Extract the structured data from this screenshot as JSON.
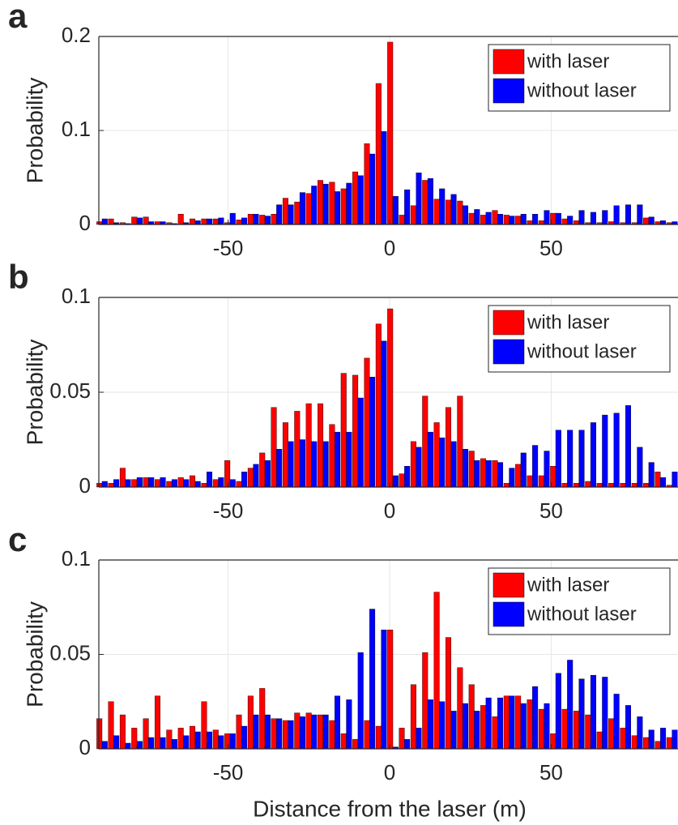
{
  "chart_data": [
    {
      "type": "bar",
      "panel_label": "a",
      "ylabel": "Probability",
      "x": [
        -89,
        -85.4,
        -81.8,
        -78.2,
        -74.6,
        -71,
        -67.4,
        -63.8,
        -60.2,
        -56.6,
        -53,
        -49.4,
        -45.8,
        -42.2,
        -38.6,
        -35,
        -31.4,
        -27.8,
        -24.2,
        -20.6,
        -17,
        -13.4,
        -9.8,
        -6.2,
        -2.6,
        1,
        4.6,
        8.2,
        11.8,
        15.4,
        19,
        22.6,
        26.2,
        29.8,
        33.4,
        37,
        40.6,
        44.2,
        47.8,
        51.4,
        55,
        58.6,
        62.2,
        65.8,
        69.4,
        73,
        76.6,
        80.2,
        83.8,
        87.4
      ],
      "series": [
        {
          "name": "with laser",
          "color": "#ff0000",
          "values": [
            0.003,
            0.006,
            0.002,
            0.008,
            0.008,
            0.003,
            0.002,
            0.011,
            0.006,
            0.006,
            0.006,
            0.002,
            0.005,
            0.011,
            0.01,
            0.011,
            0.028,
            0.024,
            0.033,
            0.047,
            0.045,
            0.038,
            0.056,
            0.086,
            0.15,
            0.194,
            0.01,
            0.02,
            0.047,
            0.027,
            0.026,
            0.025,
            0.012,
            0.01,
            0.015,
            0.01,
            0.009,
            0.004,
            0.004,
            0.012,
            0.006,
            0.004,
            0.002,
            0.002,
            0.003,
            0.002,
            0.002,
            0.007,
            0.003,
            0.002
          ]
        },
        {
          "name": "without laser",
          "color": "#0000ff",
          "values": [
            0.006,
            0.002,
            0.001,
            0.007,
            0.003,
            0.003,
            0.001,
            0.002,
            0.004,
            0.006,
            0.007,
            0.012,
            0.007,
            0.011,
            0.009,
            0.021,
            0.021,
            0.034,
            0.041,
            0.043,
            0.035,
            0.044,
            0.052,
            0.075,
            0.099,
            0.03,
            0.037,
            0.055,
            0.049,
            0.038,
            0.032,
            0.02,
            0.016,
            0.013,
            0.011,
            0.009,
            0.011,
            0.011,
            0.015,
            0.012,
            0.009,
            0.015,
            0.013,
            0.015,
            0.02,
            0.021,
            0.021,
            0.008,
            0.004,
            0.003
          ]
        }
      ],
      "xlim": [
        -90,
        90
      ],
      "ylim": [
        0,
        0.2
      ],
      "xticks": [
        -50,
        0,
        50
      ],
      "yticks": [
        0,
        0.1,
        0.2
      ],
      "grid": true,
      "legend": "northeast"
    },
    {
      "type": "bar",
      "panel_label": "b",
      "ylabel": "Probability",
      "x": [
        -89,
        -85.4,
        -81.8,
        -78.2,
        -74.6,
        -71,
        -67.4,
        -63.8,
        -60.2,
        -56.6,
        -53,
        -49.4,
        -45.8,
        -42.2,
        -38.6,
        -35,
        -31.4,
        -27.8,
        -24.2,
        -20.6,
        -17,
        -13.4,
        -9.8,
        -6.2,
        -2.6,
        1,
        4.6,
        8.2,
        11.8,
        15.4,
        19,
        22.6,
        26.2,
        29.8,
        33.4,
        37,
        40.6,
        44.2,
        47.8,
        51.4,
        55,
        58.6,
        62.2,
        65.8,
        69.4,
        73,
        76.6,
        80.2,
        83.8,
        87.4
      ],
      "series": [
        {
          "name": "with laser",
          "color": "#ff0000",
          "values": [
            0.002,
            0.002,
            0.01,
            0.004,
            0.005,
            0.004,
            0.003,
            0.005,
            0.006,
            0.002,
            0.004,
            0.014,
            0.003,
            0.01,
            0.018,
            0.042,
            0.034,
            0.04,
            0.044,
            0.044,
            0.033,
            0.06,
            0.059,
            0.068,
            0.086,
            0.094,
            0.007,
            0.024,
            0.048,
            0.034,
            0.042,
            0.048,
            0.019,
            0.015,
            0.014,
            0.002,
            0.012,
            0.006,
            0.006,
            0.011,
            0.002,
            0.002,
            0.003,
            0.002,
            0.002,
            0.002,
            0.002,
            0.002,
            0.008,
            0.001
          ]
        },
        {
          "name": "without laser",
          "color": "#0000ff",
          "values": [
            0.003,
            0.004,
            0.004,
            0.005,
            0.005,
            0.005,
            0.004,
            0.004,
            0.003,
            0.008,
            0.005,
            0.004,
            0.008,
            0.012,
            0.014,
            0.02,
            0.024,
            0.025,
            0.024,
            0.024,
            0.029,
            0.029,
            0.047,
            0.058,
            0.077,
            0.006,
            0.011,
            0.021,
            0.029,
            0.026,
            0.024,
            0.02,
            0.014,
            0.014,
            0.013,
            0.01,
            0.018,
            0.022,
            0.019,
            0.03,
            0.03,
            0.03,
            0.034,
            0.038,
            0.039,
            0.043,
            0.021,
            0.013,
            0.005,
            0.008
          ]
        }
      ],
      "xlim": [
        -90,
        90
      ],
      "ylim": [
        0,
        0.1
      ],
      "xticks": [
        -50,
        0,
        50
      ],
      "yticks": [
        0,
        0.05,
        0.1
      ],
      "grid": true,
      "legend": "northeast"
    },
    {
      "type": "bar",
      "panel_label": "c",
      "ylabel": "Probability",
      "xlabel": "Distance from the laser (m)",
      "x": [
        -89,
        -85.4,
        -81.8,
        -78.2,
        -74.6,
        -71,
        -67.4,
        -63.8,
        -60.2,
        -56.6,
        -53,
        -49.4,
        -45.8,
        -42.2,
        -38.6,
        -35,
        -31.4,
        -27.8,
        -24.2,
        -20.6,
        -17,
        -13.4,
        -9.8,
        -6.2,
        -2.6,
        1,
        4.6,
        8.2,
        11.8,
        15.4,
        19,
        22.6,
        26.2,
        29.8,
        33.4,
        37,
        40.6,
        44.2,
        47.8,
        51.4,
        55,
        58.6,
        62.2,
        65.8,
        69.4,
        73,
        76.6,
        80.2,
        83.8,
        87.4
      ],
      "series": [
        {
          "name": "with laser",
          "color": "#ff0000",
          "values": [
            0.016,
            0.025,
            0.018,
            0.011,
            0.016,
            0.028,
            0.01,
            0.011,
            0.012,
            0.025,
            0.01,
            0.008,
            0.018,
            0.028,
            0.032,
            0.016,
            0.015,
            0.019,
            0.019,
            0.018,
            0.015,
            0.008,
            0.005,
            0.015,
            0.012,
            0.063,
            0.011,
            0.034,
            0.051,
            0.083,
            0.059,
            0.043,
            0.034,
            0.023,
            0.017,
            0.028,
            0.028,
            0.026,
            0.021,
            0.008,
            0.021,
            0.02,
            0.018,
            0.009,
            0.016,
            0.011,
            0.007,
            0.006,
            0.004,
            0.006
          ]
        },
        {
          "name": "without laser",
          "color": "#0000ff",
          "values": [
            0.004,
            0.007,
            0.003,
            0.004,
            0.006,
            0.006,
            0.005,
            0.007,
            0.009,
            0.009,
            0.007,
            0.008,
            0.012,
            0.018,
            0.018,
            0.016,
            0.015,
            0.017,
            0.018,
            0.018,
            0.028,
            0.026,
            0.051,
            0.074,
            0.063,
            0.001,
            0.005,
            0.011,
            0.026,
            0.025,
            0.02,
            0.024,
            0.02,
            0.027,
            0.027,
            0.028,
            0.024,
            0.033,
            0.024,
            0.04,
            0.047,
            0.037,
            0.039,
            0.038,
            0.029,
            0.023,
            0.017,
            0.01,
            0.011,
            0.01
          ]
        }
      ],
      "xlim": [
        -90,
        90
      ],
      "ylim": [
        0,
        0.1
      ],
      "xticks": [
        -50,
        0,
        50
      ],
      "yticks": [
        0,
        0.05,
        0.1
      ],
      "grid": true,
      "legend": "northeast"
    }
  ]
}
